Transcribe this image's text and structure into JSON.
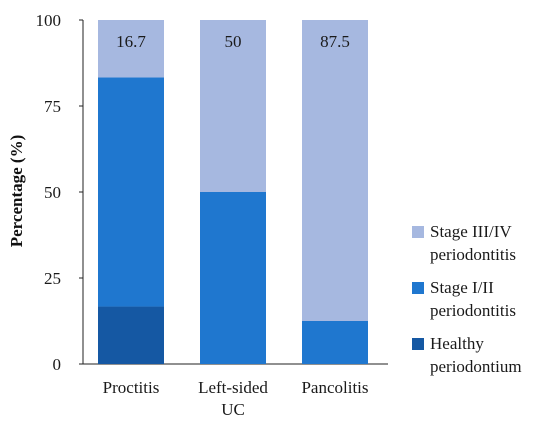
{
  "chart_data": {
    "type": "bar",
    "stacked": true,
    "categories": [
      "Proctitis",
      "Left-sided\nUC",
      "Pancolitis"
    ],
    "series": [
      {
        "name": "Healthy\nperiodontium",
        "color": "#1558a3",
        "values": [
          16.7,
          0,
          0
        ]
      },
      {
        "name": "Stage I/II\nperiodontitis",
        "color": "#1f77cf",
        "values": [
          66.6,
          50,
          12.5
        ]
      },
      {
        "name": "Stage III/IV\nperiodontitis",
        "color": "#a6b8e0",
        "values": [
          16.7,
          50,
          87.5
        ]
      }
    ],
    "data_labels": [
      "16.7",
      "50",
      "87.5"
    ],
    "ylabel": "Percentage (%)",
    "ylim": [
      0,
      100
    ],
    "yticks": [
      0,
      25,
      50,
      75,
      100
    ],
    "legend_position": "right",
    "grid": false
  }
}
